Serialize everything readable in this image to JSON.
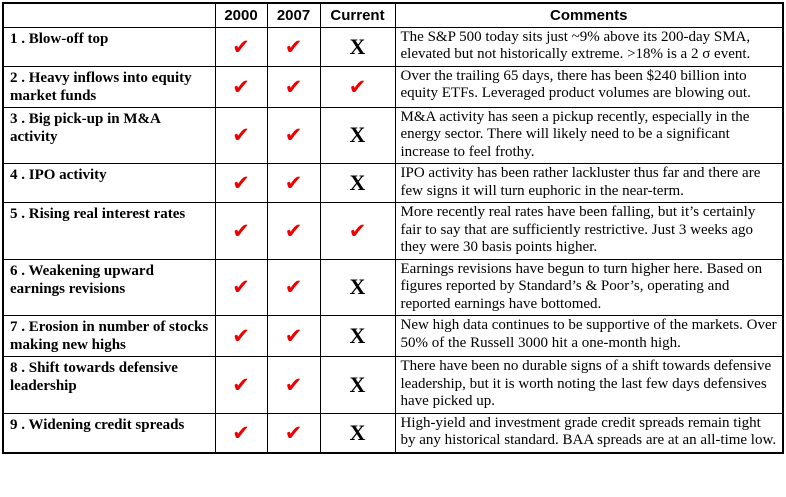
{
  "table": {
    "headers": {
      "indicator": "",
      "y2000": "2000",
      "y2007": "2007",
      "current": "Current",
      "comments": "Comments"
    },
    "rows": [
      {
        "label": "1 . Blow-off top",
        "y2000": "check",
        "y2007": "check",
        "current": "x",
        "comment": "The S&P 500 today sits just ~9% above its 200-day SMA, elevated but not historically extreme. >18% is a 2 σ event."
      },
      {
        "label": "2 . Heavy inflows into equity market funds",
        "y2000": "check",
        "y2007": "check",
        "current": "check",
        "comment": "Over the trailing 65 days, there has been $240 billion into equity ETFs. Leveraged product volumes are blowing out."
      },
      {
        "label": "3 . Big pick-up in M&A activity",
        "y2000": "check",
        "y2007": "check",
        "current": "x",
        "comment": "M&A activity has seen a pickup recently, especially in the energy sector. There will likely need to be a significant increase to feel frothy."
      },
      {
        "label": "4 . IPO activity",
        "y2000": "check",
        "y2007": "check",
        "current": "x",
        "comment": "IPO activity has been rather lackluster thus far and there are few signs it will turn euphoric in the near-term."
      },
      {
        "label": "5 . Rising real interest rates",
        "y2000": "check",
        "y2007": "check",
        "current": "check",
        "comment": "More recently real rates have been falling, but it’s certainly fair to say that are sufficiently restrictive. Just 3 weeks ago they were 30 basis points higher."
      },
      {
        "label": "6 . Weakening upward earnings revisions",
        "y2000": "check",
        "y2007": "check",
        "current": "x",
        "comment": "Earnings revisions have begun to turn higher here. Based on figures reported by Standard’s & Poor’s, operating and reported earnings have bottomed."
      },
      {
        "label": "7 . Erosion in number of stocks making new highs",
        "y2000": "check",
        "y2007": "check",
        "current": "x",
        "comment": "New high data continues to be supportive of the markets. Over 50% of the Russell 3000 hit a one-month high."
      },
      {
        "label": "8 . Shift towards defensive leadership",
        "y2000": "check",
        "y2007": "check",
        "current": "x",
        "comment": "There have been no durable signs of a shift towards defensive leadership, but it is worth noting the last few days defensives have picked up."
      },
      {
        "label": "9 . Widening credit spreads",
        "y2000": "check",
        "y2007": "check",
        "current": "x",
        "comment": "High-yield and investment grade credit spreads remain tight by any historical standard. BAA spreads are at an all-time low."
      }
    ]
  },
  "marks": {
    "check": {
      "glyph": "✔",
      "name": "red-checkmark-icon",
      "color": "#ee0000"
    },
    "x": {
      "glyph": "X",
      "name": "black-x-mark",
      "color": "#000000"
    }
  },
  "colors": {
    "border": "#000000",
    "background": "#ffffff",
    "check_red": "#ee0000",
    "text": "#000000"
  }
}
